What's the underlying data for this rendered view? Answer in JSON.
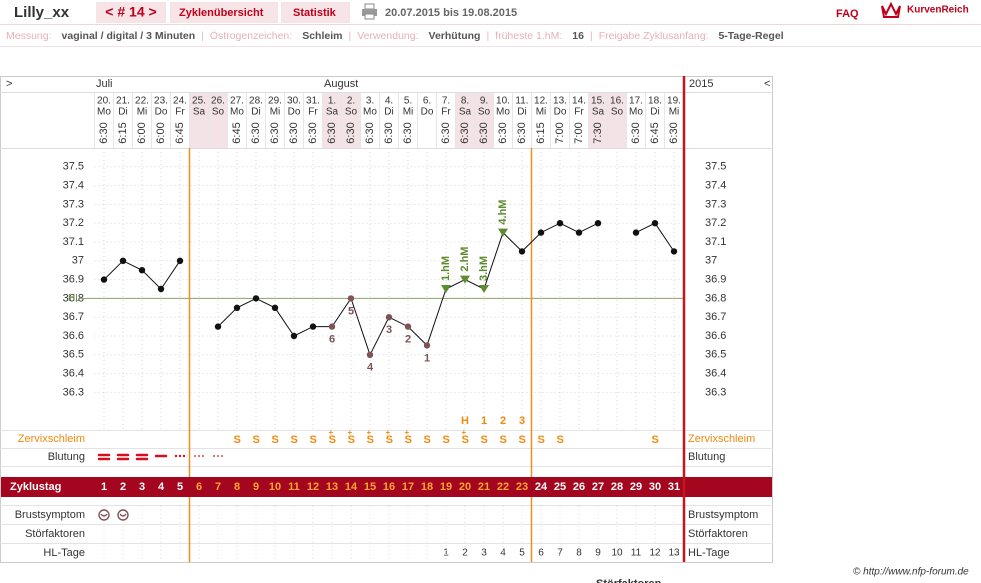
{
  "header": {
    "user": "Lilly_xx",
    "cycle_nav": "< # 14 >",
    "tabs": [
      "Zyklenübersicht",
      "Statistik"
    ],
    "period": "20.07.2015 bis 19.08.2015",
    "faq": "FAQ",
    "brand": "KurvenReich"
  },
  "info": [
    {
      "label": "Messung:",
      "value": "vaginal / digital / 3 Minuten"
    },
    {
      "label": "Östrogenzeichen:",
      "value": "Schleim"
    },
    {
      "label": "Verwendung:",
      "value": "Verhütung"
    },
    {
      "label": "früheste 1.hM:",
      "value": 16
    },
    {
      "label": "Freigabe Zyklusanfang:",
      "value": "5-Tage-Regel"
    }
  ],
  "info_separator": "|",
  "copyright": "© http://www.nfp-forum.de",
  "chart_data": {
    "type": "line",
    "nav_left": ">",
    "nav_right": "<",
    "months": [
      "Juli",
      "August"
    ],
    "year": "2015",
    "dates": [
      "20.",
      "21.",
      "22.",
      "23.",
      "24.",
      "25.",
      "26.",
      "27.",
      "28.",
      "29.",
      "30.",
      "31.",
      "1.",
      "2.",
      "3.",
      "4.",
      "5.",
      "6.",
      "7.",
      "8.",
      "9.",
      "10.",
      "11.",
      "12.",
      "13.",
      "14.",
      "15.",
      "16.",
      "17.",
      "18.",
      "19."
    ],
    "weekdays": [
      "Mo",
      "Di",
      "Mi",
      "Do",
      "Fr",
      "Sa",
      "So",
      "Mo",
      "Di",
      "Mi",
      "Do",
      "Fr",
      "Sa",
      "So",
      "Mo",
      "Di",
      "Mi",
      "Do",
      "Fr",
      "Sa",
      "So",
      "Mo",
      "Di",
      "Mi",
      "Do",
      "Fr",
      "Sa",
      "So",
      "Mo",
      "Di",
      "Mi"
    ],
    "weekend": [
      false,
      false,
      false,
      false,
      false,
      true,
      true,
      false,
      false,
      false,
      false,
      false,
      true,
      true,
      false,
      false,
      false,
      false,
      false,
      true,
      true,
      false,
      false,
      false,
      false,
      false,
      true,
      true,
      false,
      false,
      false
    ],
    "weekend_color": "#f3e3e6",
    "times": [
      "6:30",
      "6:15",
      "6:00",
      "6:00",
      "6:45",
      null,
      null,
      "6:45",
      "6:30",
      "6:30",
      "6:30",
      "6:30",
      "6:30",
      "6:30",
      "6:30",
      "6:30",
      "6:30",
      null,
      "6:30",
      "6:30",
      "6:30",
      "6:30",
      "6:30",
      "6:15",
      "7:00",
      "7:00",
      "7:30",
      null,
      "6:30",
      "6:45",
      "6:30"
    ],
    "values": [
      36.9,
      37,
      36.95,
      36.85,
      37,
      null,
      36.65,
      36.75,
      36.8,
      36.75,
      36.6,
      36.65,
      36.65,
      36.8,
      36.5,
      36.7,
      36.65,
      36.55,
      36.85,
      36.9,
      36.85,
      37.15,
      37.05,
      37.15,
      37.2,
      37.15,
      37.2,
      null,
      37.15,
      37.2,
      37.05
    ],
    "point_labels": [
      null,
      null,
      null,
      null,
      null,
      null,
      null,
      null,
      null,
      null,
      null,
      null,
      "6",
      "5",
      "4",
      "3",
      "2",
      "1",
      "1.hM",
      "2.hM",
      "3.hM",
      "4.hM",
      null,
      null,
      null,
      null,
      null,
      null,
      null,
      null,
      null
    ],
    "marker_shapes": [
      "circle",
      "circle",
      "circle",
      "circle",
      "circle",
      null,
      "circle",
      "circle",
      "circle",
      "circle",
      "circle",
      "circle",
      "circle",
      "circle",
      "circle",
      "circle",
      "circle",
      "circle",
      "triangle",
      "triangle",
      "triangle",
      "triangle",
      "circle",
      "circle",
      "circle",
      "circle",
      "circle",
      null,
      "circle",
      "circle",
      "circle"
    ],
    "marker_colors": [
      "#111",
      "#111",
      "#111",
      "#111",
      "#111",
      null,
      "#111",
      "#111",
      "#111",
      "#111",
      "#111",
      "#111",
      "#7e5358",
      "#7e5358",
      "#7e5358",
      "#7e5358",
      "#7e5358",
      "#7e5358",
      "#5e8b2e",
      "#5e8b2e",
      "#5e8b2e",
      "#5e8b2e",
      "#111",
      "#111",
      "#111",
      "#111",
      "#111",
      null,
      "#111",
      "#111",
      "#111"
    ],
    "color": "#111",
    "ylim": [
      36.1,
      37.6
    ],
    "yticks": [
      36.3,
      36.4,
      36.5,
      36.6,
      36.7,
      36.8,
      36.9,
      37,
      37.1,
      37.2,
      37.3,
      37.4,
      37.5
    ],
    "grid": true,
    "cover_line": {
      "label": "HL",
      "value": 36.8,
      "color": "#8ca464"
    },
    "fertile_window": [
      6,
      23
    ],
    "fertile_color": "#f28c1e",
    "rows": {
      "cervix": {
        "label": "Zervixschleim",
        "peak": [
          null,
          null,
          null,
          null,
          null,
          null,
          null,
          null,
          null,
          null,
          null,
          null,
          null,
          null,
          null,
          null,
          null,
          null,
          null,
          "H",
          "1",
          "2",
          "3",
          null,
          null,
          null,
          null,
          null,
          null,
          null,
          null
        ],
        "values": [
          null,
          null,
          null,
          null,
          null,
          null,
          null,
          "S",
          "S",
          "S",
          "S",
          "S",
          "S+",
          "S+",
          "S+",
          "S+",
          "S+",
          "S",
          "S",
          "S+",
          "S",
          "S",
          "S",
          "S",
          "S",
          null,
          null,
          null,
          null,
          "S",
          null
        ],
        "color": "#f08a10"
      },
      "bleeding": {
        "label": "Blutung"
      },
      "cycle_day": {
        "label": "Zyklustag",
        "values": [
          1,
          2,
          3,
          4,
          5,
          6,
          7,
          8,
          9,
          10,
          11,
          12,
          13,
          14,
          15,
          16,
          17,
          18,
          19,
          20,
          21,
          22,
          23,
          24,
          25,
          26,
          27,
          28,
          29,
          30,
          31
        ],
        "band_color": "#a3061e",
        "fertile_text": "#ffa531"
      },
      "breast": {
        "label": "Brustsymptom"
      },
      "disturbances": {
        "label": "Störfaktoren"
      },
      "hl_days": {
        "label": "HL-Tage",
        "values": [
          null,
          null,
          null,
          null,
          null,
          null,
          null,
          null,
          null,
          null,
          null,
          null,
          null,
          null,
          null,
          null,
          null,
          null,
          1,
          2,
          3,
          4,
          5,
          6,
          7,
          8,
          9,
          10,
          11,
          12,
          13
        ]
      }
    }
  }
}
